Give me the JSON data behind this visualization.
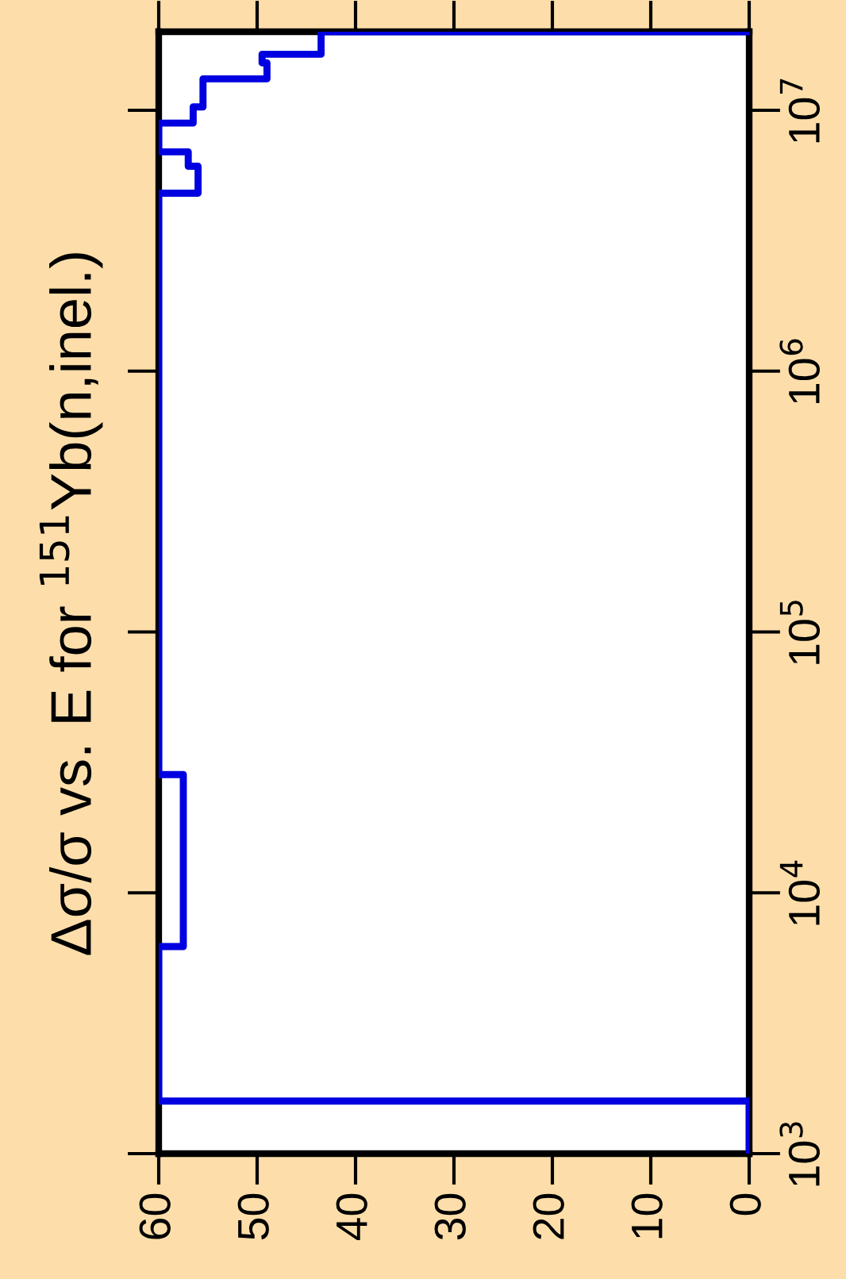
{
  "chart_data": {
    "type": "step",
    "title": "Δσ/σ vs. E for $^{151}$Yb(n,inel.)",
    "orientation": "horizontal",
    "log": "y",
    "series": [
      {
        "color": "#0000e0",
        "x": [
          1000,
          1590,
          6220,
          28400,
          4810000,
          6100000,
          6930000,
          8930000,
          10300000,
          13200000,
          15200000,
          16400000,
          20000000
        ],
        "values": [
          0,
          60,
          57.5,
          60,
          56,
          57,
          60,
          56.5,
          55.5,
          49,
          49.5,
          43.5,
          0
        ]
      }
    ],
    "xlim": [
      60,
      0
    ],
    "xticks": [
      60,
      50,
      40,
      30,
      20,
      10,
      0
    ],
    "ylim": [
      1000,
      20000000
    ],
    "yticks": [
      {
        "value": 1000,
        "label": "10$^{3}$"
      },
      {
        "value": 10000,
        "label": "10$^{4}$"
      },
      {
        "value": 100000,
        "label": "10$^{5}$"
      },
      {
        "value": 1000000,
        "label": "10$^{6}$"
      },
      {
        "value": 10000000,
        "label": "10$^{7}$"
      }
    ],
    "grid": false,
    "legend": false
  }
}
